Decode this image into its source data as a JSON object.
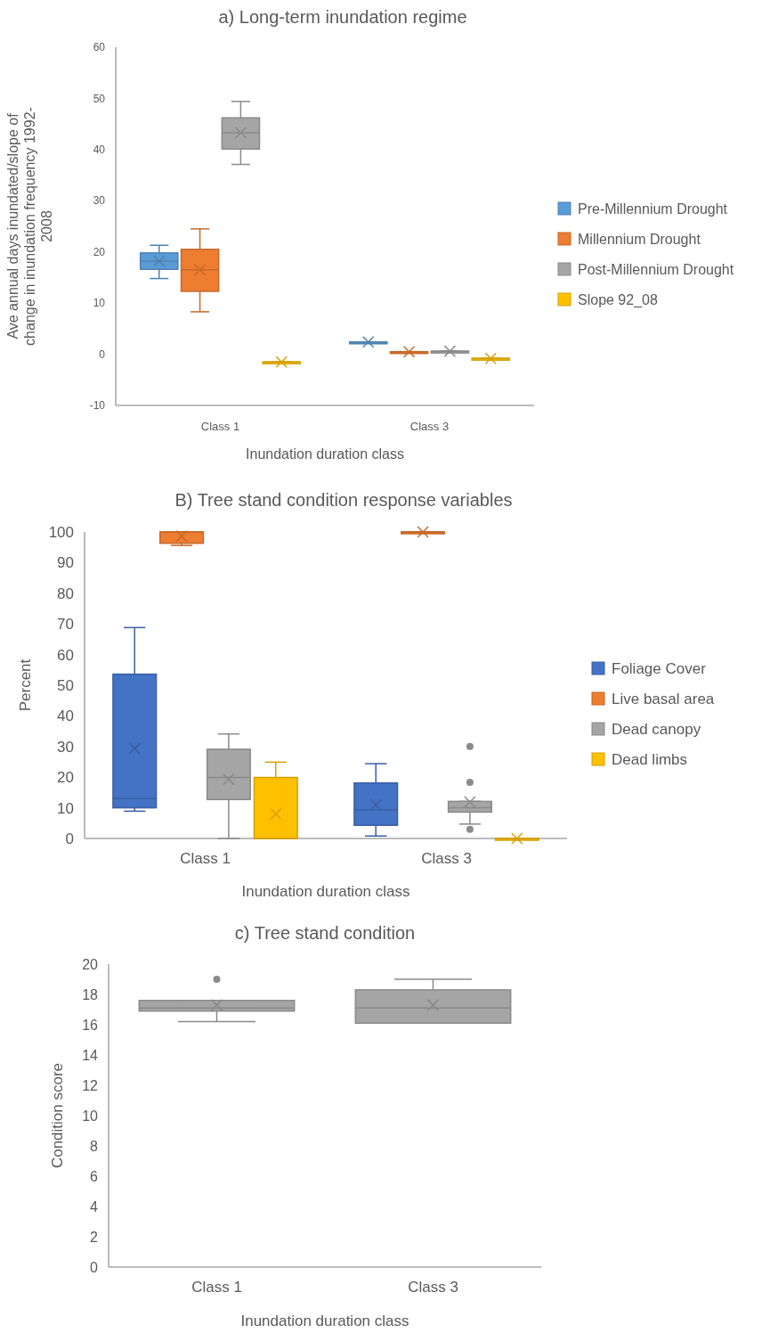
{
  "chart_data": [
    {
      "type": "box",
      "title": "a) Long-term inundation regime",
      "xlabel": "Inundation duration class",
      "ylabel": "Ave annual days inundated/slope of change in inundation frequency 1992-2008",
      "categories": [
        "Class 1",
        "Class 3"
      ],
      "ylim": [
        -10,
        60
      ],
      "yticks": [
        -10,
        0,
        10,
        20,
        30,
        40,
        50,
        60
      ],
      "grid": false,
      "legend": "right",
      "series": [
        {
          "name": "Pre-Millennium Drought",
          "color": "#5b9bd5",
          "boxes": [
            {
              "low": 14.8,
              "q1": 16.6,
              "median": 18.2,
              "q3": 19.8,
              "high": 21.3,
              "mean": 18.2
            },
            {
              "low": 2.4,
              "q1": 2.4,
              "median": 2.4,
              "q3": 2.4,
              "high": 2.4,
              "mean": 2.4
            }
          ]
        },
        {
          "name": "Millennium Drought",
          "color": "#ed7d31",
          "boxes": [
            {
              "low": 8.3,
              "q1": 12.3,
              "median": 16.5,
              "q3": 20.5,
              "high": 24.5,
              "mean": 16.5
            },
            {
              "low": 0.5,
              "q1": 0.5,
              "median": 0.5,
              "q3": 0.5,
              "high": 0.5,
              "mean": 0.5
            }
          ]
        },
        {
          "name": "Post-Millennium Drought",
          "color": "#a5a5a5",
          "boxes": [
            {
              "low": 37.1,
              "q1": 40.1,
              "median": 43.3,
              "q3": 46.2,
              "high": 49.4,
              "mean": 43.3
            },
            {
              "low": 0.6,
              "q1": 0.6,
              "median": 0.6,
              "q3": 0.6,
              "high": 0.6,
              "mean": 0.6
            }
          ]
        },
        {
          "name": "Slope 92_08",
          "color": "#ffc000",
          "boxes": [
            {
              "low": -1.5,
              "q1": -1.5,
              "median": -1.5,
              "q3": -1.5,
              "high": -1.5,
              "mean": -1.5
            },
            {
              "low": -0.8,
              "q1": -0.8,
              "median": -0.8,
              "q3": -0.8,
              "high": -0.8,
              "mean": -0.8
            }
          ]
        }
      ]
    },
    {
      "type": "box",
      "title": "B) Tree stand condition response variables",
      "xlabel": "Inundation duration class",
      "ylabel": "Percent",
      "categories": [
        "Class 1",
        "Class 3"
      ],
      "ylim": [
        0,
        100
      ],
      "yticks": [
        0,
        10,
        20,
        30,
        40,
        50,
        60,
        70,
        80,
        90,
        100
      ],
      "grid": false,
      "legend": "right",
      "series": [
        {
          "name": "Foliage Cover",
          "color": "#4472c4",
          "boxes": [
            {
              "low": 8.9,
              "q1": 10,
              "median": 13,
              "q3": 53.6,
              "high": 68.8,
              "mean": 29.4
            },
            {
              "low": 0.8,
              "q1": 4.3,
              "median": 9.4,
              "q3": 18.1,
              "high": 24.4,
              "mean": 11
            }
          ]
        },
        {
          "name": "Live basal area",
          "color": "#ed7d31",
          "boxes": [
            {
              "low": 95.6,
              "q1": 96.3,
              "median": 100,
              "q3": 100,
              "high": 100,
              "mean": 98.6
            },
            {
              "low": 100,
              "q1": 100,
              "median": 100,
              "q3": 100,
              "high": 100,
              "mean": 100
            }
          ]
        },
        {
          "name": "Dead canopy",
          "color": "#a5a5a5",
          "boxes": [
            {
              "low": 0,
              "q1": 12.7,
              "median": 19.9,
              "q3": 29.1,
              "high": 34.1,
              "mean": 19.3
            },
            {
              "low": 4.7,
              "q1": 8.6,
              "median": 10,
              "q3": 12.1,
              "high": 12.1,
              "mean": 11.9,
              "outliers": [
                30,
                18.3,
                3
              ]
            }
          ]
        },
        {
          "name": "Dead limbs",
          "color": "#ffc000",
          "boxes": [
            {
              "low": 0,
              "q1": 0,
              "median": 0,
              "q3": 19.9,
              "high": 24.9,
              "mean": 8
            },
            {
              "low": 0,
              "q1": 0,
              "median": 0,
              "q3": 0,
              "high": 0,
              "mean": 0
            }
          ]
        }
      ]
    },
    {
      "type": "box",
      "title": "c) Tree stand condition",
      "xlabel": "Inundation duration class",
      "ylabel": "Condition score",
      "categories": [
        "Class 1",
        "Class 3"
      ],
      "ylim": [
        0,
        20
      ],
      "yticks": [
        0,
        2,
        4,
        6,
        8,
        10,
        12,
        14,
        16,
        18,
        20
      ],
      "grid": false,
      "legend": false,
      "series": [
        {
          "color": "#a5a5a5",
          "boxes": [
            {
              "low": 16.2,
              "q1": 16.9,
              "median": 17.1,
              "q3": 17.6,
              "high": 17.6,
              "mean": 17.3,
              "outliers": [
                19
              ]
            },
            {
              "low": 16.1,
              "q1": 16.1,
              "median": 17.1,
              "q3": 18.3,
              "high": 19,
              "mean": 17.3
            }
          ]
        }
      ]
    }
  ]
}
